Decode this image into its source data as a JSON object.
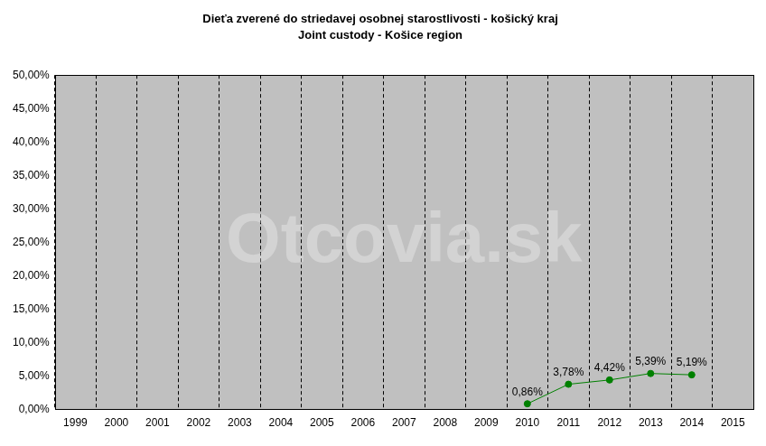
{
  "chart_data": {
    "type": "line",
    "title": "Dieťa zverené do striedavej osobnej starostlivosti - košický kraj",
    "subtitle": "Joint custody - Košice region",
    "annotations": [
      "Otcovia.sk"
    ],
    "categories": [
      "1999",
      "2000",
      "2001",
      "2002",
      "2003",
      "2004",
      "2005",
      "2006",
      "2007",
      "2008",
      "2009",
      "2010",
      "2011",
      "2012",
      "2013",
      "2014",
      "2015"
    ],
    "values": [
      null,
      null,
      null,
      null,
      null,
      null,
      null,
      null,
      null,
      null,
      null,
      0.86,
      3.78,
      4.42,
      5.39,
      5.19,
      null
    ],
    "value_labels": [
      null,
      null,
      null,
      null,
      null,
      null,
      null,
      null,
      null,
      null,
      null,
      "0,86%",
      "3,78%",
      "4,42%",
      "5,39%",
      "5,19%",
      null
    ],
    "color": "#008000",
    "marker": "circle",
    "line_style": "solid",
    "data_labels": true,
    "ylim": [
      0,
      50
    ],
    "yticks": [
      {
        "value": 0,
        "label": "0,00%"
      },
      {
        "value": 5,
        "label": "5,00%"
      },
      {
        "value": 10,
        "label": "10,00%"
      },
      {
        "value": 15,
        "label": "15,00%"
      },
      {
        "value": 20,
        "label": "20,00%"
      },
      {
        "value": 25,
        "label": "25,00%"
      },
      {
        "value": 30,
        "label": "30,00%"
      },
      {
        "value": 35,
        "label": "35,00%"
      },
      {
        "value": 40,
        "label": "40,00%"
      },
      {
        "value": 45,
        "label": "45,00%"
      },
      {
        "value": 50,
        "label": "50,00%"
      }
    ],
    "grid": "x",
    "legend": false
  }
}
